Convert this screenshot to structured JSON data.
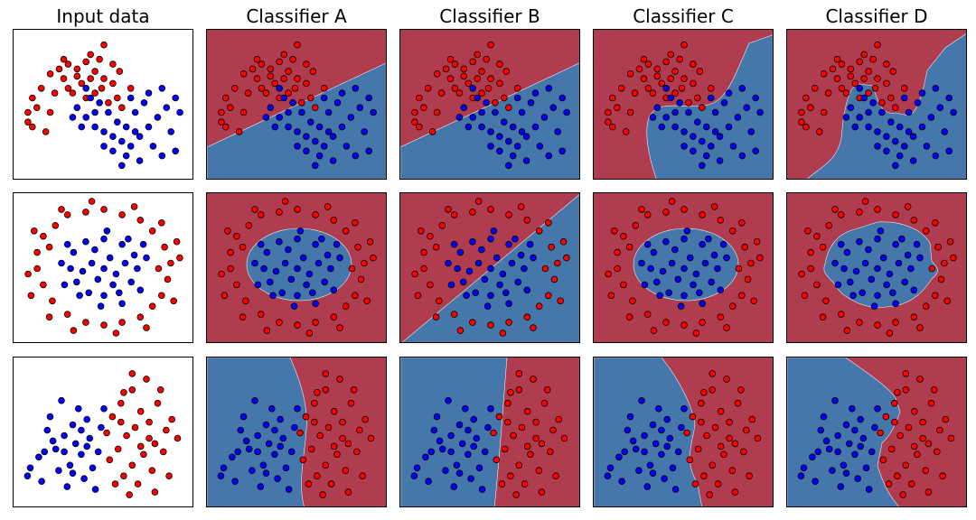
{
  "colors": {
    "class_red_point": "#ff0000",
    "class_blue_point": "#0000ff",
    "region_red": "#b03c4f",
    "region_blue": "#4677ab",
    "point_edge": "#000000"
  },
  "chart_data": {
    "type": "scatter",
    "column_titles": [
      "Input data",
      "Classifier A",
      "Classifier B",
      "Classifier C",
      "Classifier D"
    ],
    "axes": "hidden (no ticks or labels)",
    "datasets": [
      {
        "name": "",
        "x_range": [
          -1.3,
          2.5
        ],
        "y_range": [
          -1.2,
          1.7
        ],
        "red_points": [
          [
            -0.6,
            0.9
          ],
          [
            -0.4,
            1.0
          ],
          [
            -0.2,
            1.1
          ],
          [
            0.0,
            1.0
          ],
          [
            0.2,
            1.15
          ],
          [
            0.4,
            0.95
          ],
          [
            0.6,
            0.8
          ],
          [
            0.8,
            0.7
          ],
          [
            -0.8,
            0.6
          ],
          [
            -1.0,
            0.4
          ],
          [
            -1.1,
            0.1
          ],
          [
            -0.9,
            0.2
          ],
          [
            -1.0,
            -0.2
          ],
          [
            -0.7,
            -0.3
          ],
          [
            -0.5,
            0.5
          ],
          [
            -0.3,
            0.8
          ],
          [
            0.1,
            0.7
          ],
          [
            0.3,
            0.8
          ],
          [
            0.5,
            1.2
          ],
          [
            0.9,
            0.4
          ],
          [
            1.0,
            0.2
          ],
          [
            0.7,
            0.3
          ],
          [
            -0.1,
            0.5
          ],
          [
            -0.6,
            0.1
          ],
          [
            0.2,
            0.4
          ],
          [
            0.3,
            1.3
          ],
          [
            -0.3,
            1.2
          ],
          [
            0.8,
            1.1
          ],
          [
            0.4,
            0.5
          ],
          [
            -1.1,
            -0.1
          ],
          [
            0.0,
            0.85
          ],
          [
            -0.2,
            0.6
          ],
          [
            0.55,
            0.6
          ],
          [
            1.2,
            0.6
          ],
          [
            0.95,
            0.95
          ],
          [
            0.6,
            1.5
          ]
        ],
        "blue_points": [
          [
            0.0,
            0.2
          ],
          [
            0.2,
            0.0
          ],
          [
            0.4,
            -0.2
          ],
          [
            0.6,
            -0.3
          ],
          [
            0.8,
            -0.4
          ],
          [
            1.0,
            -0.5
          ],
          [
            1.2,
            -0.6
          ],
          [
            1.4,
            -0.4
          ],
          [
            1.6,
            -0.2
          ],
          [
            1.8,
            0.0
          ],
          [
            2.0,
            0.2
          ],
          [
            2.2,
            0.4
          ],
          [
            1.9,
            0.6
          ],
          [
            1.5,
            0.3
          ],
          [
            1.3,
            0.1
          ],
          [
            1.1,
            -0.2
          ],
          [
            0.9,
            -0.1
          ],
          [
            0.7,
            0.1
          ],
          [
            0.5,
            0.3
          ],
          [
            0.3,
            0.4
          ],
          [
            0.1,
            -0.2
          ],
          [
            -0.1,
            0.0
          ],
          [
            1.7,
            -0.6
          ],
          [
            1.4,
            -0.9
          ],
          [
            1.1,
            -0.8
          ],
          [
            0.8,
            -0.7
          ],
          [
            2.1,
            -0.3
          ],
          [
            2.3,
            0.1
          ],
          [
            1.6,
            0.5
          ],
          [
            1.2,
            0.4
          ],
          [
            0.6,
            -0.6
          ],
          [
            0.4,
            0.1
          ],
          [
            1.9,
            -0.8
          ],
          [
            2.2,
            -0.7
          ],
          [
            1.0,
            -1.0
          ],
          [
            1.3,
            -0.3
          ],
          [
            0.2,
            0.6
          ]
        ]
      },
      {
        "name": "",
        "x_range": [
          -1.4,
          1.4
        ],
        "y_range": [
          -1.3,
          1.3
        ],
        "red_points": [
          [
            -1.1,
            0.3
          ],
          [
            -1.0,
            0.6
          ],
          [
            -0.8,
            0.8
          ],
          [
            -0.6,
            1.0
          ],
          [
            -0.3,
            1.05
          ],
          [
            0.0,
            1.1
          ],
          [
            0.3,
            1.0
          ],
          [
            0.6,
            0.9
          ],
          [
            0.8,
            0.7
          ],
          [
            1.0,
            0.4
          ],
          [
            1.1,
            0.1
          ],
          [
            1.05,
            -0.2
          ],
          [
            0.95,
            -0.5
          ],
          [
            0.8,
            -0.7
          ],
          [
            0.6,
            -0.9
          ],
          [
            0.3,
            -1.0
          ],
          [
            0.0,
            -1.05
          ],
          [
            -0.3,
            -1.0
          ],
          [
            -0.6,
            -0.85
          ],
          [
            -0.85,
            -0.6
          ],
          [
            -1.0,
            -0.3
          ],
          [
            -1.1,
            0.0
          ],
          [
            -0.9,
            0.4
          ],
          [
            0.9,
            0.0
          ],
          [
            1.2,
            0.5
          ],
          [
            -1.2,
            -0.5
          ],
          [
            0.5,
            1.15
          ],
          [
            -0.5,
            -1.15
          ],
          [
            0.2,
            -1.2
          ],
          [
            -0.2,
            1.25
          ],
          [
            1.15,
            -0.6
          ],
          [
            -1.15,
            0.7
          ],
          [
            0.7,
            -1.1
          ],
          [
            -0.7,
            1.1
          ],
          [
            1.25,
            0.2
          ],
          [
            -1.25,
            -0.1
          ],
          [
            0.95,
            0.85
          ],
          [
            -0.9,
            -0.9
          ]
        ],
        "blue_points": [
          [
            -0.5,
            0.3
          ],
          [
            -0.3,
            0.5
          ],
          [
            0.0,
            0.55
          ],
          [
            0.3,
            0.45
          ],
          [
            0.5,
            0.25
          ],
          [
            0.55,
            0.0
          ],
          [
            0.45,
            -0.25
          ],
          [
            0.25,
            -0.45
          ],
          [
            0.0,
            -0.5
          ],
          [
            -0.25,
            -0.45
          ],
          [
            -0.45,
            -0.25
          ],
          [
            -0.55,
            0.0
          ],
          [
            -0.2,
            0.1
          ],
          [
            0.1,
            0.2
          ],
          [
            0.2,
            -0.1
          ],
          [
            -0.1,
            -0.2
          ],
          [
            0.0,
            0.0
          ],
          [
            -0.35,
            -0.05
          ],
          [
            0.35,
            0.1
          ],
          [
            -0.15,
            0.35
          ],
          [
            0.15,
            -0.3
          ],
          [
            -0.6,
            0.45
          ],
          [
            0.6,
            -0.4
          ],
          [
            -0.4,
            -0.5
          ],
          [
            0.4,
            0.55
          ],
          [
            -0.7,
            0.1
          ],
          [
            0.7,
            0.2
          ],
          [
            0.05,
            0.7
          ],
          [
            -0.05,
            -0.7
          ],
          [
            -0.65,
            -0.3
          ],
          [
            0.65,
            0.45
          ],
          [
            0.3,
            -0.65
          ]
        ]
      },
      {
        "name": "",
        "x_range": [
          -2.8,
          3.2
        ],
        "y_range": [
          -2.2,
          3.0
        ],
        "red_points": [
          [
            0.5,
            1.0
          ],
          [
            0.8,
            1.5
          ],
          [
            1.2,
            2.0
          ],
          [
            1.5,
            1.2
          ],
          [
            1.8,
            0.8
          ],
          [
            2.1,
            1.5
          ],
          [
            2.4,
            0.5
          ],
          [
            2.0,
            0.0
          ],
          [
            1.6,
            -0.4
          ],
          [
            1.2,
            -0.8
          ],
          [
            0.9,
            -1.2
          ],
          [
            1.4,
            -1.5
          ],
          [
            1.9,
            -1.0
          ],
          [
            2.3,
            -0.3
          ],
          [
            2.6,
            0.9
          ],
          [
            1.0,
            0.3
          ],
          [
            0.7,
            -0.2
          ],
          [
            1.3,
            0.6
          ],
          [
            1.7,
            2.4
          ],
          [
            2.2,
            2.0
          ],
          [
            0.4,
            -0.6
          ],
          [
            0.6,
            -1.5
          ],
          [
            1.1,
            -1.9
          ],
          [
            2.5,
            -1.2
          ],
          [
            1.5,
            -0.1
          ],
          [
            0.9,
            1.9
          ],
          [
            2.8,
            0.2
          ],
          [
            1.8,
            0.2
          ],
          [
            1.2,
            2.6
          ],
          [
            0.3,
            0.4
          ],
          [
            2.0,
            -1.8
          ],
          [
            0.8,
            0.8
          ]
        ],
        "blue_points": [
          [
            -0.8,
            0.0
          ],
          [
            -1.2,
            0.3
          ],
          [
            -1.5,
            -0.2
          ],
          [
            -1.8,
            0.5
          ],
          [
            -2.1,
            -0.5
          ],
          [
            -1.0,
            -0.8
          ],
          [
            -0.6,
            -0.4
          ],
          [
            -0.3,
            0.2
          ],
          [
            -0.9,
            0.7
          ],
          [
            -1.4,
            -1.0
          ],
          [
            -2.4,
            -0.9
          ],
          [
            -0.5,
            -1.3
          ],
          [
            -1.1,
            -1.6
          ],
          [
            -0.2,
            -0.9
          ],
          [
            -1.7,
            1.0
          ],
          [
            -0.7,
            1.3
          ],
          [
            -1.3,
            1.6
          ],
          [
            0.0,
            -0.3
          ],
          [
            0.1,
            0.6
          ],
          [
            -0.4,
            0.9
          ],
          [
            -2.0,
            -1.4
          ],
          [
            -0.9,
            -1.1
          ],
          [
            -1.6,
            0.1
          ],
          [
            -0.1,
            -1.7
          ],
          [
            0.2,
            1.3
          ],
          [
            -1.9,
            -0.3
          ],
          [
            -0.6,
            0.5
          ],
          [
            -1.2,
            -0.3
          ],
          [
            -2.5,
            -1.2
          ],
          [
            -0.4,
            -0.1
          ]
        ]
      }
    ],
    "rows": [
      {
        "input": "Input data",
        "A": "linear",
        "B": "linear",
        "C": "curved",
        "D": "irregular"
      },
      {
        "input": "Input data",
        "A": "ellipse",
        "B": "linear",
        "C": "ellipse",
        "D": "irregular-ellipse"
      },
      {
        "input": "Input data",
        "A": "curved",
        "B": "near-vertical",
        "C": "curved",
        "D": "irregular"
      }
    ]
  }
}
